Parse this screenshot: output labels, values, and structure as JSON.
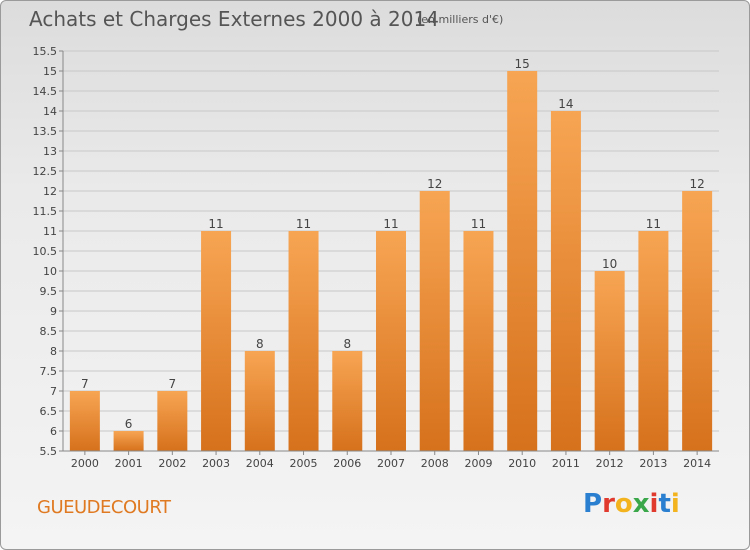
{
  "header": {
    "title": "Achats et Charges Externes 2000 à 2014",
    "subtitle": "(en milliers d'€)"
  },
  "footer": {
    "place": "GUEUDECOURT",
    "logo_letters": [
      "P",
      "r",
      "o",
      "x",
      "i",
      "t",
      "i"
    ],
    "logo_colors": [
      "#2a7fd0",
      "#e03a2f",
      "#f2b31e",
      "#3aa84a",
      "#e03a2f",
      "#2a7fd0",
      "#f2b31e"
    ]
  },
  "colors": {
    "bar_top": "#f7a553",
    "bar_bottom": "#d6711c",
    "grid": "#c8c8c8",
    "axis": "#888888"
  },
  "chart_data": {
    "type": "bar",
    "title": "Achats et Charges Externes 2000 à 2014",
    "subtitle": "(en milliers d'€)",
    "xlabel": "",
    "ylabel": "",
    "categories": [
      "2000",
      "2001",
      "2002",
      "2003",
      "2004",
      "2005",
      "2006",
      "2007",
      "2008",
      "2009",
      "2010",
      "2011",
      "2012",
      "2013",
      "2014"
    ],
    "values": [
      7,
      6,
      7,
      11,
      8,
      11,
      8,
      11,
      12,
      11,
      15,
      14,
      10,
      11,
      12
    ],
    "ylim": [
      5.5,
      15.5
    ],
    "yticks": [
      "5.5",
      "6",
      "6.5",
      "7",
      "7.5",
      "8",
      "8.5",
      "9",
      "9.5",
      "10",
      "10.5",
      "11",
      "11.5",
      "12",
      "12.5",
      "13",
      "13.5",
      "14",
      "14.5",
      "15",
      "15.5"
    ],
    "grid": true,
    "legend": "none"
  }
}
